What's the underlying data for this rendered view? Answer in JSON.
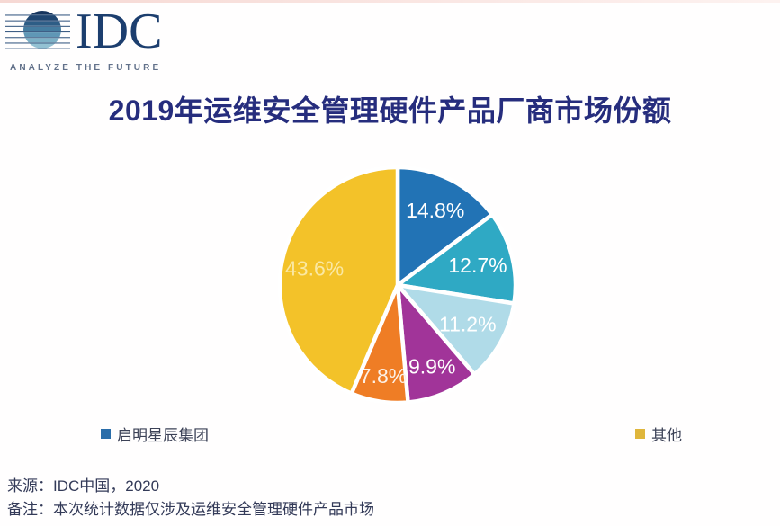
{
  "logo": {
    "name": "IDC",
    "tagline": "ANALYZE THE FUTURE",
    "text_color": "#1c3e6e",
    "tagline_color": "#62718a"
  },
  "title": {
    "text": "2019年运维安全管理硬件产品厂商市场份额",
    "color": "#262d7d"
  },
  "chart_data": {
    "type": "pie",
    "title": "2019年运维安全管理硬件产品厂商市场份额",
    "unit": "%",
    "start_angle_deg": 0,
    "direction": "clockwise",
    "slices": [
      {
        "vendor": "启明星辰集团",
        "value": 14.8,
        "label": "14.8%",
        "color": "#2273B5",
        "label_color": "#FFFFFF",
        "label_r": 0.71
      },
      {
        "vendor": "",
        "value": 12.7,
        "label": "12.7%",
        "color": "#2FA9C4",
        "label_color": "#FFFFFF",
        "label_r": 0.7
      },
      {
        "vendor": "",
        "value": 11.2,
        "label": "11.2%",
        "color": "#B0DBE8",
        "label_color": "#FFFFFF",
        "label_r": 0.68
      },
      {
        "vendor": "",
        "value": 9.9,
        "label": "9.9%",
        "color": "#A13499",
        "label_color": "#FFFFFF",
        "label_r": 0.75
      },
      {
        "vendor": "",
        "value": 7.8,
        "label": "7.8%",
        "color": "#EF7D25",
        "label_color": "#FCF0E6",
        "label_r": 0.78
      },
      {
        "vendor": "其他",
        "value": 43.6,
        "label": "43.6%",
        "color": "#F3C229",
        "label_color": "#FAE8A3",
        "label_r": 0.72
      }
    ],
    "legend": [
      {
        "label": "启明星辰集团",
        "color": "#2A6DA9"
      },
      {
        "label": "其他",
        "color": "#DFB63C"
      }
    ],
    "legend_position": "bottom",
    "slice_border_color": "#FFFFFF"
  },
  "footer": {
    "source": "来源：IDC中国，2020",
    "note": "备注：本次统计数据仅涉及运维安全管理硬件产品市场"
  }
}
